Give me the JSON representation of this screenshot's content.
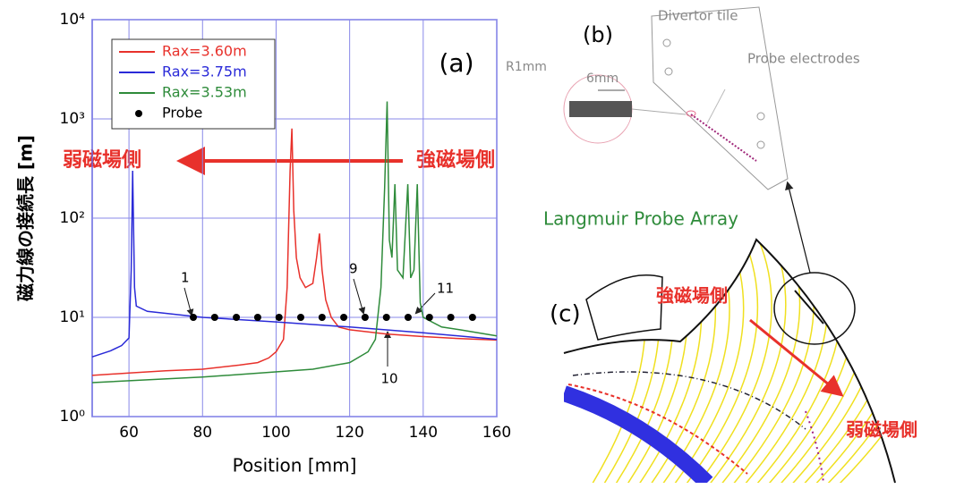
{
  "chart_data": {
    "type": "line",
    "xlabel": "Position [mm]",
    "ylabel": "磁力線の接続長 [m]",
    "xlim": [
      50,
      160
    ],
    "xticks": [
      60,
      80,
      100,
      120,
      140,
      160
    ],
    "ylim": [
      1,
      10000
    ],
    "ylog": true,
    "yticks": [
      {
        "value": 1,
        "label": "10⁰"
      },
      {
        "value": 10,
        "label": "10¹"
      },
      {
        "value": 100,
        "label": "10²"
      },
      {
        "value": 1000,
        "label": "10³"
      },
      {
        "value": 10000,
        "label": "10⁴"
      }
    ],
    "grid": true,
    "legend": "upper left",
    "series": [
      {
        "name": "Rax=3.60m",
        "color": "#e8312b",
        "x": [
          50,
          60,
          70,
          80,
          90,
          95,
          98,
          100,
          102,
          103,
          103.8,
          104.3,
          104.8,
          105.5,
          106.5,
          108,
          110,
          111,
          111.8,
          112.5,
          113.5,
          115,
          117,
          120,
          130,
          140,
          150,
          160
        ],
        "values": [
          2.6,
          2.75,
          2.9,
          3.0,
          3.3,
          3.5,
          3.9,
          4.5,
          6,
          20,
          300,
          800,
          120,
          40,
          25,
          20,
          22,
          40,
          70,
          30,
          15,
          10,
          8,
          7.5,
          6.8,
          6.4,
          6.1,
          5.9
        ]
      },
      {
        "name": "Rax=3.75m",
        "color": "#2a2ad8",
        "x": [
          50,
          55,
          58,
          60,
          60.6,
          61,
          61.5,
          62,
          65,
          80,
          100,
          120,
          140,
          160
        ],
        "values": [
          4,
          4.6,
          5.2,
          6.2,
          30,
          300,
          20,
          13,
          11.5,
          10,
          9,
          8,
          7,
          6
        ]
      },
      {
        "name": "Rax=3.53m",
        "color": "#2e8b3a",
        "x": [
          50,
          80,
          110,
          120,
          125,
          127,
          128.5,
          129.5,
          130.2,
          130.8,
          131.5,
          132.3,
          133,
          134.5,
          135.8,
          136.6,
          137.5,
          138.4,
          139.2,
          140,
          145,
          150,
          160
        ],
        "values": [
          2.2,
          2.5,
          3.0,
          3.5,
          4.5,
          6,
          20,
          200,
          1500,
          60,
          40,
          220,
          30,
          25,
          220,
          25,
          30,
          220,
          14,
          10,
          8,
          7.5,
          6.5
        ]
      },
      {
        "name": "Probe",
        "color": "#000000",
        "marker": "dot",
        "x": [
          77.5,
          83.3,
          89.2,
          95,
          100.8,
          106.7,
          112.5,
          118.4,
          124.2,
          130,
          135.9,
          141.7,
          147.5,
          153.4
        ],
        "values": [
          10,
          10,
          10,
          10,
          10,
          10,
          10,
          10,
          10,
          10,
          10,
          10,
          10,
          10
        ]
      }
    ],
    "annotations": [
      "(a)",
      "1",
      "9",
      "10",
      "11",
      "弱磁場側",
      "強磁場側"
    ]
  },
  "diagram": {
    "panel_b": "(b)",
    "divertor_tile": "Divertor tile",
    "probe_electrodes": "Probe electrodes",
    "r1mm": "R1mm",
    "six_mm": "6mm",
    "langmuir": "Langmuir Probe Array",
    "panel_c": "(c)",
    "strong_side": "強磁場側",
    "weak_side": "弱磁場側"
  }
}
